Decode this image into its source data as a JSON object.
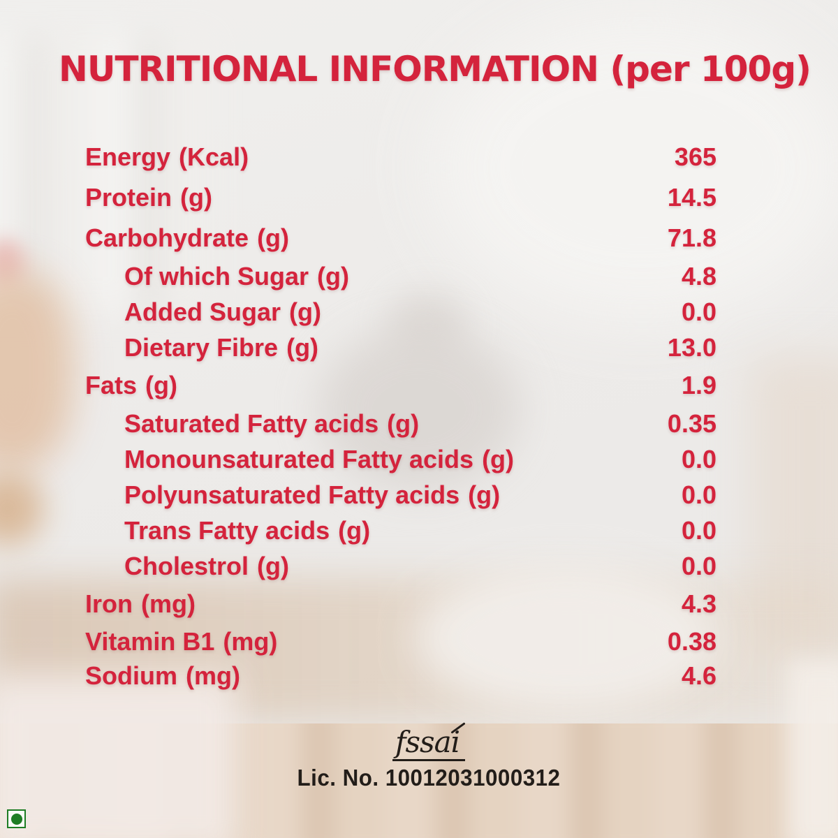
{
  "title": "NUTRITIONAL INFORMATION (per 100g)",
  "colors": {
    "accent_red": "#d4233c",
    "ink": "#221d19",
    "veg_green": "#1e7d24"
  },
  "nutrition_rows": [
    {
      "label": "Energy",
      "unit": "(Kcal)",
      "value": "365",
      "indent": false
    },
    {
      "label": "Protein",
      "unit": "(g)",
      "value": "14.5",
      "indent": false
    },
    {
      "label": "Carbohydrate",
      "unit": "(g)",
      "value": "71.8",
      "indent": false
    },
    {
      "label": "Of which Sugar",
      "unit": "(g)",
      "value": "4.8",
      "indent": true
    },
    {
      "label": "Added Sugar",
      "unit": "(g)",
      "value": "0.0",
      "indent": true
    },
    {
      "label": "Dietary Fibre",
      "unit": "(g)",
      "value": "13.0",
      "indent": true
    },
    {
      "label": "Fats",
      "unit": "(g)",
      "value": "1.9",
      "indent": false
    },
    {
      "label": "Saturated Fatty acids",
      "unit": "(g)",
      "value": "0.35",
      "indent": true
    },
    {
      "label": "Monounsaturated Fatty acids",
      "unit": "(g)",
      "value": "0.0",
      "indent": true
    },
    {
      "label": "Polyunsaturated Fatty acids",
      "unit": "(g)",
      "value": "0.0",
      "indent": true
    },
    {
      "label": "Trans Fatty acids",
      "unit": "(g)",
      "value": "0.0",
      "indent": true
    },
    {
      "label": "Cholestrol",
      "unit": "(g)",
      "value": "0.0",
      "indent": true
    },
    {
      "label": "Iron",
      "unit": "(mg)",
      "value": "4.3",
      "indent": false
    },
    {
      "label": "Vitamin B1",
      "unit": "(mg)",
      "value": "0.38",
      "indent": false
    },
    {
      "label": "Sodium",
      "unit": "(mg)",
      "value": "4.6",
      "indent": false
    }
  ],
  "footer": {
    "fssai_wordmark": "fssai",
    "license_text": "Lic. No. 10012031000312"
  },
  "icons": {
    "veg_mark": "green-dot-vegetarian-symbol"
  }
}
